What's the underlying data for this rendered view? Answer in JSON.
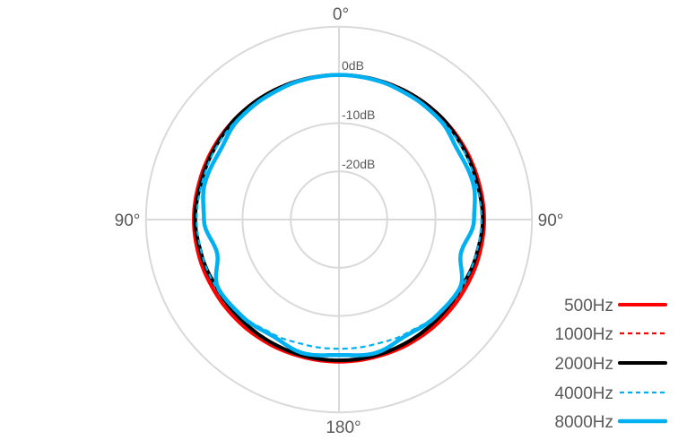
{
  "chart_data": {
    "type": "polar",
    "angle_labels": {
      "top": "0°",
      "left": "90°",
      "right": "90°",
      "bottom": "180°"
    },
    "radial_labels": [
      "0dB",
      "-10dB",
      "-20dB"
    ],
    "radial_range_db": [
      -30,
      10
    ],
    "grid": true,
    "legend_position": "bottom-right",
    "angles_deg": [
      0,
      15,
      30,
      45,
      60,
      75,
      90,
      105,
      120,
      135,
      150,
      165,
      180
    ],
    "series": [
      {
        "name": "500Hz",
        "color": "#ff0000",
        "dash": false,
        "values": [
          0,
          0,
          0,
          0,
          0,
          0,
          0.1,
          0,
          -0.2,
          -0.3,
          -0.4,
          -0.5,
          -0.5
        ]
      },
      {
        "name": "1000Hz",
        "color": "#ff0000",
        "dash": true,
        "values": [
          0,
          0,
          0,
          -0.1,
          -0.2,
          -0.2,
          -0.1,
          -0.3,
          -0.6,
          -0.8,
          -0.9,
          -0.9,
          -0.9
        ]
      },
      {
        "name": "2000Hz",
        "color": "#000000",
        "dash": false,
        "values": [
          0,
          0,
          0,
          0,
          -0.3,
          -0.4,
          -0.2,
          -0.6,
          -1.0,
          -1.0,
          -0.9,
          -0.8,
          -0.8
        ]
      },
      {
        "name": "4000Hz",
        "color": "#00b0f0",
        "dash": true,
        "values": [
          0,
          0,
          -0.2,
          -0.4,
          -0.5,
          -0.6,
          -0.5,
          -0.7,
          -0.9,
          -1.8,
          -2.6,
          -3.1,
          -3.2
        ]
      },
      {
        "name": "8000Hz",
        "color": "#00b0f0",
        "dash": false,
        "values": [
          0,
          -0.1,
          -0.4,
          -0.6,
          -1.5,
          -1.2,
          -2.0,
          -3.8,
          -1.2,
          -1.6,
          -2.2,
          -1.3,
          -1.9
        ]
      }
    ]
  }
}
